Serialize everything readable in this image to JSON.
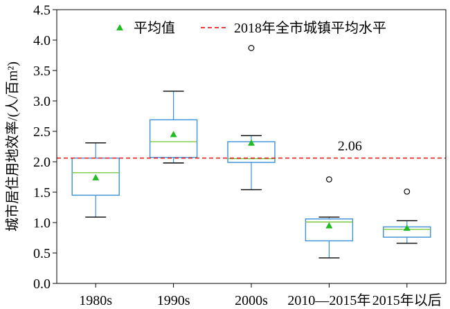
{
  "chart_data": {
    "type": "boxplot",
    "title": "",
    "xlabel": "",
    "ylabel": "城市居住用地效率/(人/百m²)",
    "ylim": [
      0,
      4.5
    ],
    "yticks": [
      "0.0",
      "0.5",
      "1.0",
      "1.5",
      "2.0",
      "2.5",
      "3.0",
      "3.5",
      "4.0",
      "4.5"
    ],
    "categories": [
      "1980s",
      "1990s",
      "2000s",
      "2010—2015年",
      "2015年以后"
    ],
    "boxes": [
      {
        "whisker_low": 1.09,
        "q1": 1.45,
        "median": 1.82,
        "q3": 2.06,
        "whisker_high": 2.31,
        "mean": 1.74,
        "outliers": []
      },
      {
        "whisker_low": 1.98,
        "q1": 2.07,
        "median": 2.33,
        "q3": 2.69,
        "whisker_high": 3.16,
        "mean": 2.45,
        "outliers": []
      },
      {
        "whisker_low": 1.54,
        "q1": 1.99,
        "median": 2.05,
        "q3": 2.33,
        "whisker_high": 2.43,
        "mean": 2.31,
        "outliers": [
          3.87
        ]
      },
      {
        "whisker_low": 0.42,
        "q1": 0.7,
        "median": 1.01,
        "q3": 1.06,
        "whisker_high": 1.09,
        "mean": 0.95,
        "outliers": [
          1.71
        ]
      },
      {
        "whisker_low": 0.66,
        "q1": 0.76,
        "median": 0.89,
        "q3": 0.93,
        "whisker_high": 1.03,
        "mean": 0.91,
        "outliers": [
          1.51
        ]
      }
    ],
    "reference_line": {
      "value": 2.06,
      "label": "2.06"
    },
    "legend": {
      "placement": "top",
      "mean_label": "平均值",
      "reference_label": "2018年全市城镇平均水平"
    },
    "colors": {
      "box": "#3a8fd9",
      "median": "#7ac943",
      "mean": "#22bb22",
      "reference": "#e02020",
      "whisker": "#000000",
      "outlier": "#000000"
    }
  }
}
